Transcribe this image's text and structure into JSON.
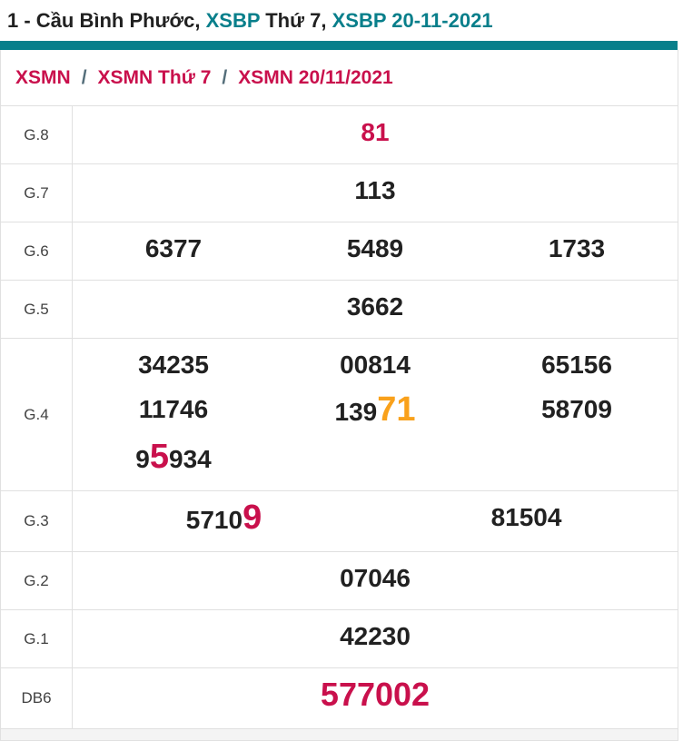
{
  "colors": {
    "teal": "#087f8b",
    "crimson": "#c9104c",
    "orange": "#f9a11b",
    "dark": "#212121",
    "label": "#424242",
    "border": "#e0e0e0",
    "sep": "#546e7a",
    "footer": "#f4f4f4"
  },
  "title": {
    "segments": [
      {
        "text": "1 - Cầu Bình Phước, ",
        "style": "dark"
      },
      {
        "text": "XSBP",
        "style": "teal"
      },
      {
        "text": " Thứ 7, ",
        "style": "dark"
      },
      {
        "text": "XSBP 20-11-2021",
        "style": "teal"
      }
    ]
  },
  "breadcrumb": {
    "separator": "/",
    "items": [
      "XSMN",
      "XSMN Thứ 7",
      "XSMN 20/11/2021"
    ]
  },
  "results": {
    "rows": [
      {
        "label": "G.8",
        "lines": [
          [
            [
              {
                "t": "81",
                "s": "red"
              }
            ]
          ]
        ]
      },
      {
        "label": "G.7",
        "lines": [
          [
            [
              {
                "t": "113"
              }
            ]
          ]
        ]
      },
      {
        "label": "G.6",
        "lines": [
          [
            [
              {
                "t": "6377"
              }
            ],
            [
              {
                "t": "5489"
              }
            ],
            [
              {
                "t": "1733"
              }
            ]
          ]
        ]
      },
      {
        "label": "G.5",
        "lines": [
          [
            [
              {
                "t": "3662"
              }
            ]
          ]
        ]
      },
      {
        "label": "G.4",
        "lines": [
          [
            [
              {
                "t": "34235"
              }
            ],
            [
              {
                "t": "00814"
              }
            ],
            [
              {
                "t": "65156"
              }
            ]
          ],
          [
            [
              {
                "t": "11746"
              }
            ],
            [
              {
                "t": "139"
              },
              {
                "t": "71",
                "s": "orange-big"
              }
            ],
            [
              {
                "t": "58709"
              }
            ]
          ],
          [
            [
              {
                "t": "9"
              },
              {
                "t": "5",
                "s": "red-big"
              },
              {
                "t": "934"
              }
            ],
            [],
            []
          ]
        ]
      },
      {
        "label": "G.3",
        "lines": [
          [
            [
              {
                "t": "5710"
              },
              {
                "t": "9",
                "s": "red-big"
              }
            ],
            [
              {
                "t": "81504"
              }
            ]
          ]
        ]
      },
      {
        "label": "G.2",
        "lines": [
          [
            [
              {
                "t": "07046"
              }
            ]
          ]
        ]
      },
      {
        "label": "G.1",
        "lines": [
          [
            [
              {
                "t": "42230"
              }
            ]
          ]
        ]
      },
      {
        "label": "DB6",
        "lines": [
          [
            [
              {
                "t": "577002",
                "s": "red-lg"
              }
            ]
          ]
        ]
      }
    ]
  }
}
